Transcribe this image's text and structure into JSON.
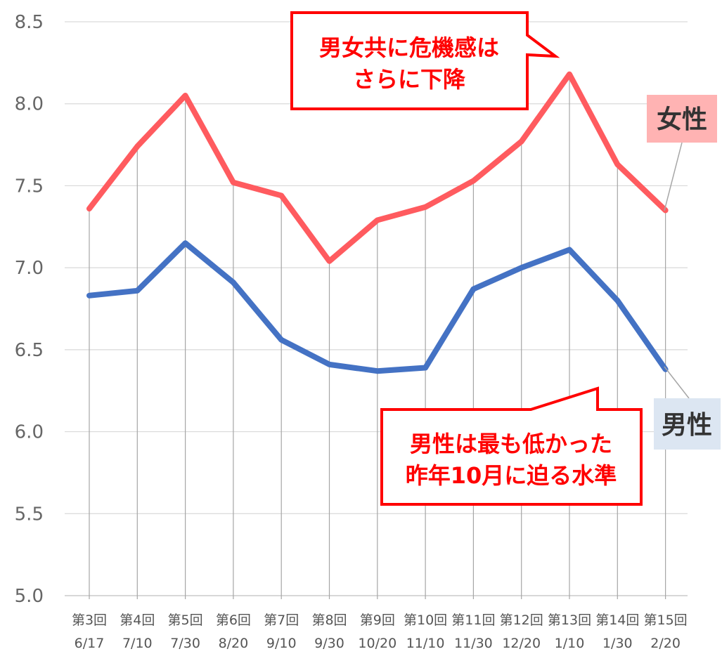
{
  "chart_data": {
    "type": "line",
    "categories": [
      [
        "第3回",
        "6/17"
      ],
      [
        "第4回",
        "7/10"
      ],
      [
        "第5回",
        "7/30"
      ],
      [
        "第6回",
        "8/20"
      ],
      [
        "第7回",
        "9/10"
      ],
      [
        "第8回",
        "9/30"
      ],
      [
        "第9回",
        "10/20"
      ],
      [
        "第10回",
        "11/10"
      ],
      [
        "第11回",
        "11/30"
      ],
      [
        "第12回",
        "12/20"
      ],
      [
        "第13回",
        "1/10"
      ],
      [
        "第14回",
        "1/30"
      ],
      [
        "第15回",
        "2/20"
      ]
    ],
    "ylim": [
      5.0,
      8.5
    ],
    "yticks": [
      "5.0",
      "5.5",
      "6.0",
      "6.5",
      "7.0",
      "7.5",
      "8.0",
      "8.5"
    ],
    "grid": "horizontal and vertical drop lines",
    "series": [
      {
        "name": "女性",
        "color": "#ff5b5f",
        "values": [
          7.36,
          7.74,
          8.05,
          7.52,
          7.44,
          7.04,
          7.29,
          7.37,
          7.53,
          7.77,
          8.18,
          7.63,
          7.35
        ]
      },
      {
        "name": "男性",
        "color": "#4472c4",
        "values": [
          6.83,
          6.86,
          7.15,
          6.91,
          6.56,
          6.41,
          6.37,
          6.39,
          6.87,
          7.0,
          7.11,
          6.8,
          6.38
        ]
      }
    ],
    "legend": {
      "female": {
        "label": "女性",
        "bg": "#ffb3b3"
      },
      "male": {
        "label": "男性",
        "bg": "#dce6f2"
      }
    },
    "annotations": [
      {
        "lines": [
          "男女共に危機感は",
          "さらに下降"
        ],
        "color": "#ff0000"
      },
      {
        "lines": [
          "男性は最も低かった",
          "昨年10月に迫る水準"
        ],
        "color": "#ff0000"
      }
    ]
  }
}
